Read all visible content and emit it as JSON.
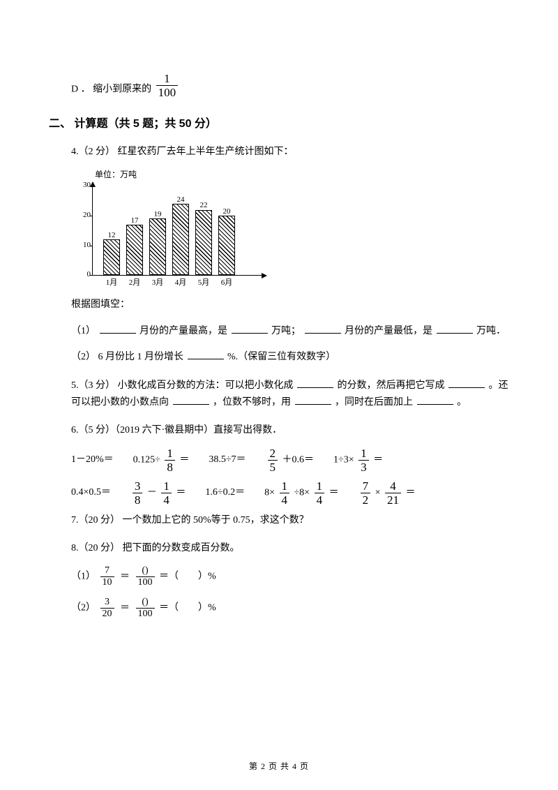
{
  "optionD": {
    "label": "D ．",
    "text_pre": "缩小到原来的",
    "num": "1",
    "den": "100"
  },
  "sectionII": {
    "title": "二、 计算题（共 5 题；共 50 分）"
  },
  "q4": {
    "stem": "4.（2 分） 红星农药厂去年上半年生产统计图如下：",
    "chart": {
      "unit": "单位：万吨",
      "yTicks": [
        0,
        10,
        20,
        30
      ],
      "yMax": 31,
      "plotHeightPx": 132,
      "barWidthPx": 24,
      "barGapPx": 33,
      "firstBarLeftPx": 46,
      "barColor_hatch": "#000000",
      "bg": "#ffffff",
      "categories": [
        "1月",
        "2月",
        "3月",
        "4月",
        "5月",
        "6月"
      ],
      "values": [
        12,
        17,
        19,
        24,
        22,
        20
      ]
    },
    "after_chart": "根据图填空：",
    "sub1_a": "（1） ",
    "sub1_b": "月份的产量最高，是",
    "sub1_c": "万吨；",
    "sub1_d": "月份的产量最低，是",
    "sub1_e": "万吨．",
    "sub2_a": "（2） 6 月份比 1 月份增长",
    "sub2_b": "%.（保留三位有效数字）"
  },
  "q5": {
    "stem": "5.（3 分） 小数化成百分数的方法：可以把小数化成",
    "p1": "的分数，然后再把它写成",
    "p2": "。还可以把小数的小数点向",
    "p3": "，位数不够时，用",
    "p4": "，同时在后面加上",
    "p5": "。"
  },
  "q6": {
    "stem": "6.（5 分）（2019 六下·徽县期中）直接写出得数．",
    "row1": [
      {
        "pre": "1－20%＝"
      },
      {
        "pre": "0.125÷ ",
        "frac": {
          "n": "1",
          "d": "8"
        },
        "post": " ＝"
      },
      {
        "pre": "38.5÷7＝"
      },
      {
        "frac": {
          "n": "2",
          "d": "5"
        },
        "post": " ＋0.6＝"
      },
      {
        "pre": "1÷3× ",
        "frac": {
          "n": "1",
          "d": "3"
        },
        "post": " ＝"
      }
    ],
    "row2": [
      {
        "pre": "0.4×0.5＝"
      },
      {
        "frac": {
          "n": "3",
          "d": "8"
        },
        "mid": " － ",
        "frac2": {
          "n": "1",
          "d": "4"
        },
        "post": " ＝"
      },
      {
        "pre": "1.6÷0.2＝"
      },
      {
        "pre": "8× ",
        "frac": {
          "n": "1",
          "d": "4"
        },
        "mid": " ÷8× ",
        "frac2": {
          "n": "1",
          "d": "4"
        },
        "post": " ＝"
      },
      {
        "frac": {
          "n": "7",
          "d": "2"
        },
        "mid": " × ",
        "frac2": {
          "n": "4",
          "d": "21"
        },
        "post": " ＝"
      }
    ]
  },
  "q7": {
    "stem": "7.（20 分） 一个数加上它的 50%等于 0.75，求这个数？"
  },
  "q8": {
    "stem": "8.（20 分） 把下面的分数变成百分数。",
    "item1": {
      "label": "（1） ",
      "a_n": "7",
      "a_d": "10",
      "eq": "＝",
      "b_n": "()",
      "b_d": "100",
      "tail": " ＝（　　）%"
    },
    "item2": {
      "label": "（2） ",
      "a_n": "3",
      "a_d": "20",
      "eq": "＝",
      "b_n": "()",
      "b_d": "100",
      "tail": " ＝（　　）%"
    }
  },
  "footer": "第 2 页 共 4 页"
}
